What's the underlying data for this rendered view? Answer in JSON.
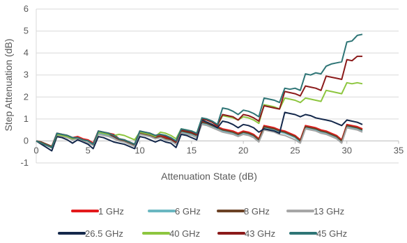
{
  "chart_data": {
    "type": "line",
    "xlabel": "Attenuation State (dB)",
    "ylabel": "Step Attenuation (dB)",
    "xlim": [
      0,
      35
    ],
    "ylim": [
      -1,
      6
    ],
    "xticks": [
      0,
      5,
      10,
      15,
      20,
      25,
      30,
      35
    ],
    "yticks": [
      -1,
      0,
      1,
      2,
      3,
      4,
      5,
      6
    ],
    "grid": "horizontal",
    "legend": "bottom",
    "x": [
      0,
      0.5,
      1,
      1.5,
      2,
      2.5,
      3,
      3.5,
      4,
      4.5,
      5,
      5.5,
      6,
      6.5,
      7,
      7.5,
      8,
      8.5,
      9,
      9.5,
      10,
      10.5,
      11,
      11.5,
      12,
      12.5,
      13,
      13.5,
      14,
      14.5,
      15,
      15.5,
      16,
      16.5,
      17,
      17.5,
      18,
      18.5,
      19,
      19.5,
      20,
      20.5,
      21,
      21.5,
      22,
      22.5,
      23,
      23.5,
      24,
      24.5,
      25,
      25.5,
      26,
      26.5,
      27,
      27.5,
      28,
      28.5,
      29,
      29.5,
      30,
      30.5,
      31,
      31.5
    ],
    "series": [
      {
        "name": "1 GHz",
        "color": "#e31a1c",
        "values": [
          0,
          -0.05,
          -0.15,
          -0.25,
          0.35,
          0.3,
          0.25,
          0.15,
          0.2,
          0.1,
          0.05,
          -0.1,
          0.45,
          0.4,
          0.35,
          0.3,
          0.1,
          0.05,
          -0.05,
          -0.15,
          0.4,
          0.35,
          0.3,
          0.2,
          0.25,
          0.15,
          0.1,
          -0.05,
          0.5,
          0.45,
          0.4,
          0.3,
          0.9,
          0.85,
          0.75,
          0.65,
          0.55,
          0.5,
          0.45,
          0.35,
          0.45,
          0.4,
          0.3,
          0.1,
          0.7,
          0.65,
          0.6,
          0.5,
          0.45,
          0.35,
          0.25,
          0.05,
          0.7,
          0.65,
          0.6,
          0.5,
          0.45,
          0.35,
          0.25,
          0.05,
          0.75,
          0.7,
          0.65,
          0.55
        ]
      },
      {
        "name": "6 GHz",
        "color": "#6ab7c1",
        "values": [
          0,
          -0.1,
          -0.2,
          -0.3,
          0.3,
          0.25,
          0.2,
          0.05,
          0.1,
          0,
          -0.1,
          -0.2,
          0.35,
          0.3,
          0.25,
          0.15,
          0,
          -0.05,
          -0.15,
          -0.25,
          0.3,
          0.25,
          0.2,
          0.1,
          0.15,
          0.05,
          0,
          -0.15,
          0.4,
          0.35,
          0.3,
          0.2,
          0.8,
          0.75,
          0.65,
          0.55,
          0.45,
          0.4,
          0.35,
          0.25,
          0.35,
          0.3,
          0.2,
          0,
          0.6,
          0.55,
          0.5,
          0.4,
          0.35,
          0.25,
          0.15,
          -0.05,
          0.6,
          0.55,
          0.5,
          0.4,
          0.35,
          0.25,
          0.15,
          -0.05,
          0.65,
          0.6,
          0.55,
          0.45
        ]
      },
      {
        "name": "8 GHz",
        "color": "#6b4226",
        "values": [
          0,
          -0.05,
          -0.15,
          -0.25,
          0.3,
          0.25,
          0.2,
          0.1,
          0.15,
          0.05,
          0,
          -0.15,
          0.4,
          0.35,
          0.3,
          0.2,
          0.05,
          0,
          -0.1,
          -0.2,
          0.35,
          0.3,
          0.25,
          0.15,
          0.2,
          0.1,
          0.05,
          -0.1,
          0.45,
          0.4,
          0.35,
          0.25,
          0.85,
          0.8,
          0.7,
          0.6,
          0.5,
          0.45,
          0.4,
          0.3,
          0.4,
          0.35,
          0.25,
          0.05,
          0.65,
          0.6,
          0.55,
          0.45,
          0.4,
          0.3,
          0.2,
          0,
          0.65,
          0.6,
          0.55,
          0.45,
          0.4,
          0.3,
          0.2,
          0,
          0.7,
          0.65,
          0.6,
          0.5
        ]
      },
      {
        "name": "13 GHz",
        "color": "#a6a6a6",
        "values": [
          0,
          -0.1,
          -0.2,
          -0.3,
          0.25,
          0.2,
          0.15,
          0.05,
          0.1,
          0,
          -0.1,
          -0.2,
          0.3,
          0.25,
          0.2,
          0.1,
          0,
          -0.05,
          -0.15,
          -0.25,
          0.3,
          0.25,
          0.2,
          0.1,
          0.15,
          0.05,
          0,
          -0.15,
          0.35,
          0.3,
          0.25,
          0.15,
          0.75,
          0.7,
          0.6,
          0.5,
          0.4,
          0.35,
          0.3,
          0.2,
          0.3,
          0.25,
          0.15,
          -0.05,
          0.5,
          0.45,
          0.4,
          0.3,
          0.25,
          0.15,
          0.05,
          -0.1,
          0.55,
          0.5,
          0.45,
          0.35,
          0.3,
          0.2,
          0.1,
          -0.1,
          0.6,
          0.55,
          0.5,
          0.4
        ]
      },
      {
        "name": "26.5 GHz",
        "color": "#14284b",
        "values": [
          0,
          -0.15,
          -0.3,
          -0.45,
          0.2,
          0.15,
          0.05,
          -0.1,
          0.05,
          -0.05,
          -0.15,
          -0.35,
          0.2,
          0.15,
          0.05,
          -0.05,
          -0.1,
          -0.15,
          -0.25,
          -0.35,
          0.2,
          0.15,
          0.05,
          -0.05,
          0.05,
          -0.05,
          -0.1,
          -0.3,
          0.3,
          0.25,
          0.15,
          0.05,
          0.95,
          0.85,
          0.75,
          0.6,
          0.9,
          0.85,
          0.75,
          0.6,
          0.75,
          0.7,
          0.6,
          0.4,
          0.55,
          0.5,
          0.45,
          0.35,
          1.3,
          1.25,
          1.2,
          1.1,
          1.2,
          1.15,
          1.05,
          1,
          0.95,
          0.9,
          0.8,
          0.7,
          0.95,
          0.9,
          0.85,
          0.75
        ]
      },
      {
        "name": "40 GHz",
        "color": "#8dc63f",
        "values": [
          0,
          -0.1,
          -0.2,
          -0.3,
          0.3,
          0.25,
          0.2,
          0.1,
          0.15,
          0.05,
          0,
          -0.15,
          0.4,
          0.35,
          0.3,
          0.25,
          0.3,
          0.25,
          0.15,
          0.05,
          0.4,
          0.35,
          0.3,
          0.2,
          0.4,
          0.35,
          0.25,
          0.1,
          0.55,
          0.5,
          0.45,
          0.35,
          1,
          0.95,
          0.85,
          0.7,
          1.15,
          1.1,
          1.05,
          0.95,
          1.1,
          1.05,
          0.95,
          0.8,
          1.65,
          1.6,
          1.55,
          1.45,
          1.95,
          1.9,
          1.85,
          1.75,
          1.95,
          1.9,
          1.85,
          1.8,
          2.3,
          2.25,
          2.2,
          2.15,
          2.65,
          2.6,
          2.65,
          2.6
        ]
      },
      {
        "name": "43 GHz",
        "color": "#8b1a1a",
        "values": [
          0,
          -0.1,
          -0.2,
          -0.3,
          0.35,
          0.3,
          0.25,
          0.15,
          0.15,
          0.05,
          0,
          -0.15,
          0.45,
          0.4,
          0.35,
          0.2,
          0.1,
          0.05,
          -0.05,
          -0.15,
          0.45,
          0.4,
          0.35,
          0.25,
          0.3,
          0.2,
          0.1,
          -0.05,
          0.5,
          0.45,
          0.4,
          0.3,
          1,
          0.95,
          0.85,
          0.7,
          1.2,
          1.15,
          1.1,
          0.95,
          1.2,
          1.15,
          1.05,
          0.9,
          1.6,
          1.55,
          1.5,
          1.45,
          2.25,
          2.2,
          2.15,
          2.05,
          2.5,
          2.45,
          2.4,
          2.3,
          2.95,
          2.9,
          2.85,
          2.8,
          3.7,
          3.65,
          3.85,
          3.85
        ]
      },
      {
        "name": "45 GHz",
        "color": "#2e7576",
        "values": [
          0,
          -0.1,
          -0.2,
          -0.3,
          0.35,
          0.3,
          0.25,
          0.15,
          0.15,
          0.05,
          0,
          -0.15,
          0.45,
          0.4,
          0.35,
          0.25,
          0.1,
          0.05,
          -0.05,
          -0.15,
          0.45,
          0.4,
          0.35,
          0.25,
          0.3,
          0.25,
          0.15,
          0,
          0.55,
          0.5,
          0.45,
          0.35,
          1.05,
          1,
          0.9,
          0.75,
          1.5,
          1.45,
          1.35,
          1.2,
          1.4,
          1.35,
          1.25,
          1.1,
          1.95,
          1.9,
          1.85,
          1.75,
          2.4,
          2.35,
          2.4,
          2.3,
          3.05,
          3,
          3.1,
          3.05,
          3.4,
          3.5,
          3.55,
          3.6,
          4.5,
          4.55,
          4.8,
          4.85
        ]
      }
    ]
  }
}
